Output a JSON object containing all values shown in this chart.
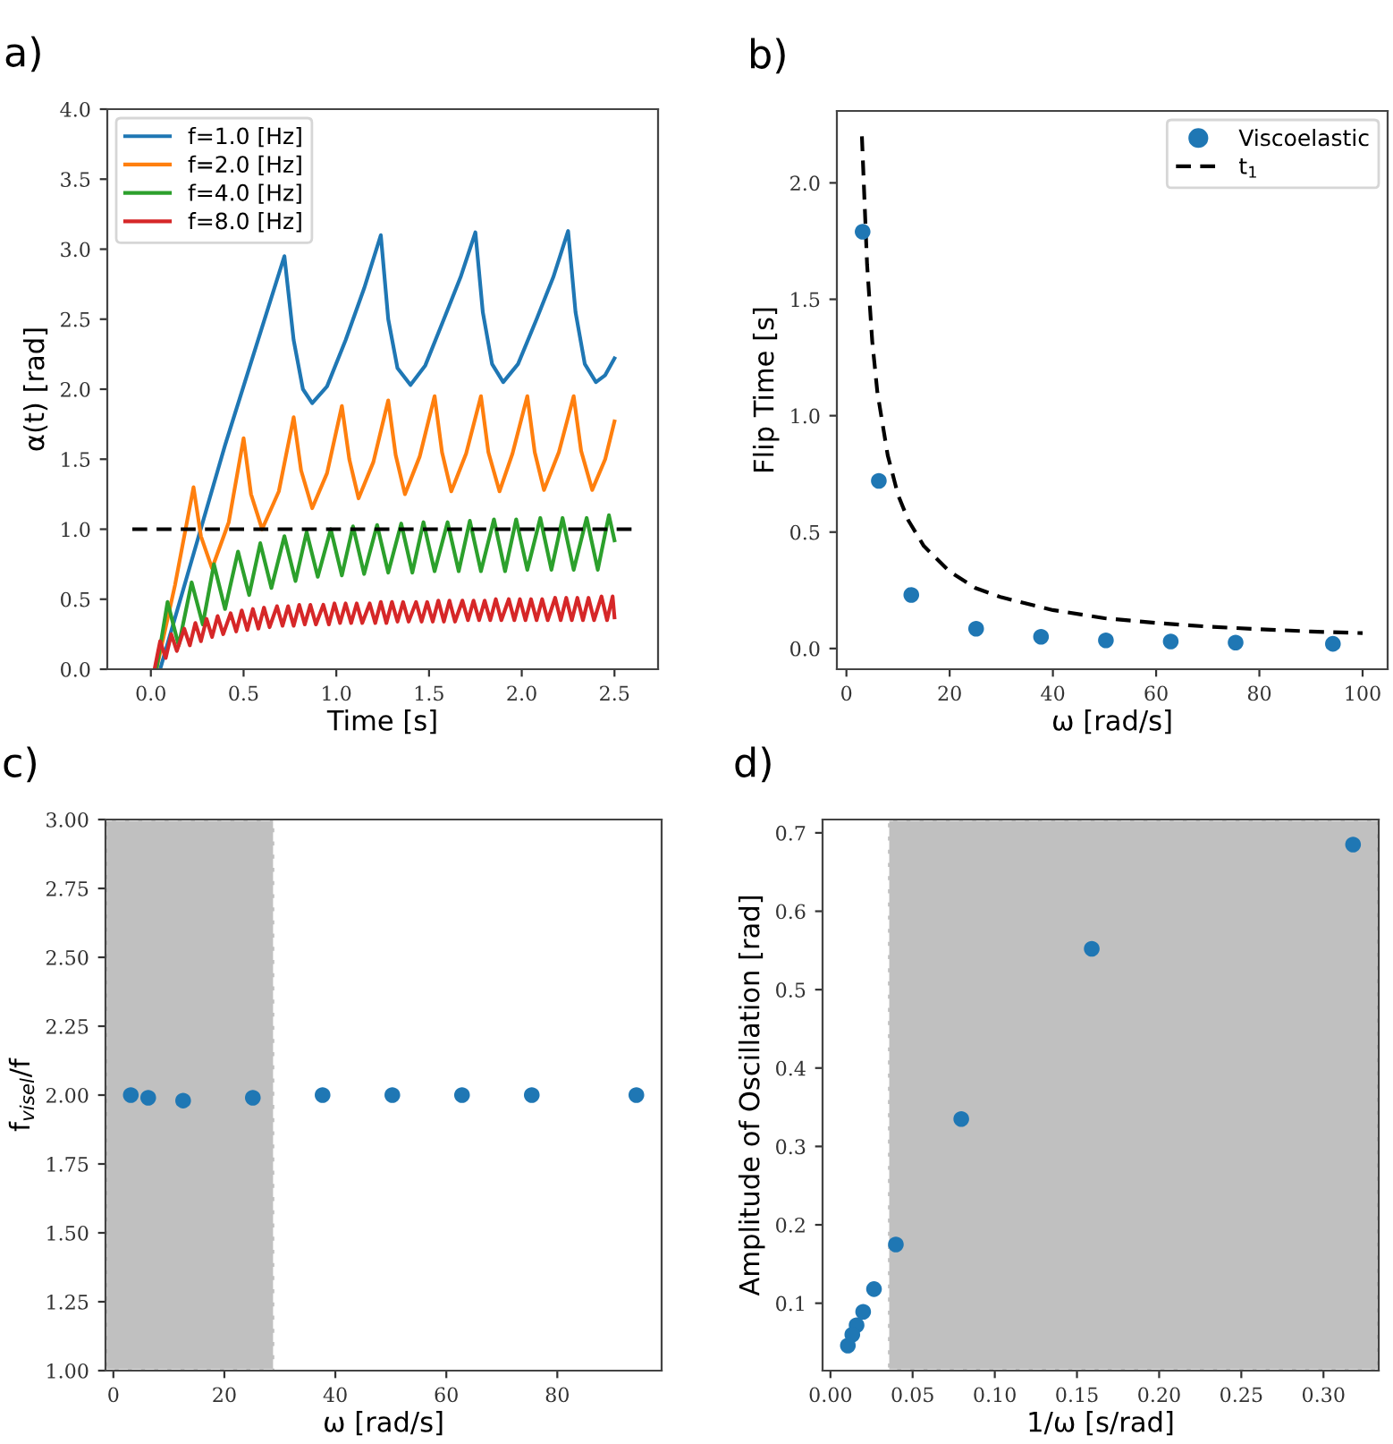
{
  "chart_data": [
    {
      "type": "line",
      "title": "a)",
      "xlabel": "Time [s]",
      "ylabel": "α(t) [rad]",
      "legend": "top left",
      "grid": false,
      "xlim": [
        -0.235,
        2.735
      ],
      "ylim": [
        0,
        4
      ],
      "xticks": [
        {
          "value": 0,
          "label": "0.0"
        },
        {
          "value": 0.5,
          "label": "0.5"
        },
        {
          "value": 1,
          "label": "1.0"
        },
        {
          "value": 1.5,
          "label": "1.5"
        },
        {
          "value": 2,
          "label": "2.0"
        },
        {
          "value": 2.5,
          "label": "2.5"
        }
      ],
      "yticks": [
        {
          "value": 0,
          "label": "0.0"
        },
        {
          "value": 0.5,
          "label": "0.5"
        },
        {
          "value": 1,
          "label": "1.0"
        },
        {
          "value": 1.5,
          "label": "1.5"
        },
        {
          "value": 2,
          "label": "2.0"
        },
        {
          "value": 2.5,
          "label": "2.5"
        },
        {
          "value": 3,
          "label": "3.0"
        },
        {
          "value": 3.5,
          "label": "3.5"
        },
        {
          "value": 4,
          "label": "4.0"
        }
      ],
      "series": [
        {
          "name": "f=1.0 [Hz]",
          "color": "#1f77b4",
          "x": [
            0.05,
            0.4,
            0.72,
            0.77,
            0.82,
            0.87,
            0.95,
            1.05,
            1.15,
            1.24,
            1.28,
            1.33,
            1.4,
            1.48,
            1.58,
            1.67,
            1.75,
            1.79,
            1.84,
            1.9,
            1.98,
            2.08,
            2.17,
            2.25,
            2.29,
            2.34,
            2.4,
            2.45,
            2.5
          ],
          "values": [
            0,
            1.6,
            2.95,
            2.35,
            2.0,
            1.9,
            2.02,
            2.35,
            2.72,
            3.1,
            2.5,
            2.15,
            2.03,
            2.17,
            2.5,
            2.8,
            3.12,
            2.55,
            2.18,
            2.05,
            2.18,
            2.5,
            2.8,
            3.13,
            2.55,
            2.18,
            2.05,
            2.1,
            2.22
          ]
        },
        {
          "name": "f=2.0 [Hz]",
          "color": "#ff7f0e",
          "x": [
            0.03,
            0.13,
            0.23,
            0.27,
            0.33,
            0.42,
            0.5,
            0.54,
            0.6,
            0.69,
            0.77,
            0.81,
            0.87,
            0.95,
            1.03,
            1.07,
            1.12,
            1.2,
            1.28,
            1.32,
            1.37,
            1.45,
            1.53,
            1.57,
            1.62,
            1.7,
            1.78,
            1.82,
            1.88,
            1.95,
            2.03,
            2.07,
            2.12,
            2.2,
            2.28,
            2.32,
            2.38,
            2.45,
            2.5
          ],
          "values": [
            0,
            0.6,
            1.3,
            0.95,
            0.72,
            1.05,
            1.65,
            1.25,
            1.0,
            1.27,
            1.8,
            1.42,
            1.15,
            1.4,
            1.88,
            1.5,
            1.22,
            1.48,
            1.92,
            1.53,
            1.25,
            1.52,
            1.95,
            1.55,
            1.27,
            1.54,
            1.95,
            1.55,
            1.27,
            1.54,
            1.95,
            1.55,
            1.28,
            1.55,
            1.95,
            1.56,
            1.28,
            1.5,
            1.77
          ]
        },
        {
          "name": "f=4.0 [Hz]",
          "color": "#2ca02c",
          "x": [
            0.03,
            0.09,
            0.15,
            0.22,
            0.28,
            0.34,
            0.4,
            0.47,
            0.53,
            0.59,
            0.65,
            0.72,
            0.78,
            0.84,
            0.9,
            0.97,
            1.03,
            1.09,
            1.15,
            1.22,
            1.28,
            1.35,
            1.41,
            1.47,
            1.53,
            1.6,
            1.66,
            1.72,
            1.78,
            1.85,
            1.91,
            1.97,
            2.03,
            2.1,
            2.16,
            2.22,
            2.28,
            2.35,
            2.41,
            2.47,
            2.5
          ],
          "values": [
            0,
            0.48,
            0.17,
            0.62,
            0.32,
            0.75,
            0.43,
            0.84,
            0.53,
            0.9,
            0.58,
            0.95,
            0.63,
            0.98,
            0.66,
            1.0,
            0.67,
            1.02,
            0.68,
            1.03,
            0.69,
            1.04,
            0.69,
            1.05,
            0.7,
            1.05,
            0.7,
            1.06,
            0.7,
            1.07,
            0.7,
            1.07,
            0.71,
            1.08,
            0.71,
            1.08,
            0.71,
            1.08,
            0.71,
            1.1,
            0.92
          ]
        },
        {
          "name": "f=8.0 [Hz]",
          "color": "#d62728",
          "x": [
            0.02,
            0.05,
            0.08,
            0.11,
            0.14,
            0.18,
            0.21,
            0.24,
            0.27,
            0.3,
            0.33,
            0.36,
            0.39,
            0.43,
            0.46,
            0.49,
            0.52,
            0.55,
            0.58,
            0.61,
            0.64,
            0.68,
            0.71,
            0.74,
            0.77,
            0.8,
            0.83,
            0.86,
            0.89,
            0.93,
            0.96,
            0.99,
            1.02,
            1.05,
            1.08,
            1.11,
            1.14,
            1.18,
            1.21,
            1.24,
            1.27,
            1.3,
            1.33,
            1.36,
            1.39,
            1.43,
            1.46,
            1.49,
            1.52,
            1.55,
            1.58,
            1.61,
            1.64,
            1.68,
            1.71,
            1.74,
            1.77,
            1.8,
            1.83,
            1.86,
            1.89,
            1.93,
            1.96,
            1.99,
            2.02,
            2.05,
            2.08,
            2.11,
            2.14,
            2.18,
            2.21,
            2.24,
            2.27,
            2.3,
            2.33,
            2.36,
            2.39,
            2.43,
            2.46,
            2.49,
            2.5
          ],
          "values": [
            0,
            0.2,
            0.08,
            0.25,
            0.13,
            0.29,
            0.17,
            0.33,
            0.2,
            0.36,
            0.23,
            0.38,
            0.25,
            0.4,
            0.27,
            0.42,
            0.28,
            0.43,
            0.29,
            0.44,
            0.3,
            0.45,
            0.31,
            0.45,
            0.31,
            0.46,
            0.32,
            0.46,
            0.32,
            0.46,
            0.32,
            0.47,
            0.33,
            0.47,
            0.33,
            0.47,
            0.33,
            0.47,
            0.33,
            0.48,
            0.33,
            0.48,
            0.34,
            0.48,
            0.34,
            0.48,
            0.34,
            0.48,
            0.34,
            0.49,
            0.34,
            0.49,
            0.34,
            0.49,
            0.35,
            0.49,
            0.35,
            0.49,
            0.35,
            0.5,
            0.35,
            0.5,
            0.35,
            0.5,
            0.35,
            0.5,
            0.35,
            0.5,
            0.35,
            0.51,
            0.35,
            0.51,
            0.35,
            0.51,
            0.35,
            0.51,
            0.35,
            0.52,
            0.35,
            0.52,
            0.37
          ]
        },
        {
          "color": "#000000",
          "line_style": "dashed",
          "x": [
            -0.1,
            2.6
          ],
          "values": [
            1,
            1
          ]
        }
      ]
    },
    {
      "type": "scatter",
      "title": "b)",
      "xlabel": "ω [rad/s]",
      "ylabel": "Flip Time [s]",
      "legend": "top right",
      "grid": false,
      "xlim": [
        -1.85,
        104.85
      ],
      "ylim": [
        -0.089,
        2.309
      ],
      "xticks": [
        0,
        20,
        40,
        60,
        80,
        100
      ],
      "yticks": [
        {
          "value": 0,
          "label": "0.0"
        },
        {
          "value": 0.5,
          "label": "0.5"
        },
        {
          "value": 1,
          "label": "1.0"
        },
        {
          "value": 1.5,
          "label": "1.5"
        },
        {
          "value": 2,
          "label": "2.0"
        }
      ],
      "series": [
        {
          "name": "Viscoelastic",
          "type": "scatter",
          "marker": "circle",
          "color": "#1f77b4",
          "x": [
            3.14,
            6.28,
            12.57,
            25.13,
            37.7,
            50.27,
            62.83,
            75.4,
            94.25
          ],
          "values": [
            1.79,
            0.72,
            0.23,
            0.085,
            0.05,
            0.035,
            0.03,
            0.025,
            0.02
          ]
        },
        {
          "name": "t$_{1}$",
          "type": "line",
          "line_style": "dashed",
          "color": "#000000",
          "x": [
            3,
            4,
            5,
            6,
            8,
            10,
            12,
            15,
            20,
            25,
            30,
            40,
            50,
            60,
            70,
            80,
            90,
            100
          ],
          "values": [
            2.2,
            1.65,
            1.32,
            1.1,
            0.83,
            0.66,
            0.55,
            0.44,
            0.33,
            0.26,
            0.22,
            0.165,
            0.13,
            0.11,
            0.094,
            0.083,
            0.073,
            0.066
          ]
        }
      ]
    },
    {
      "type": "scatter",
      "title": "c)",
      "xlabel": "ω [rad/s]",
      "ylabel": "f$_{visel}$/f",
      "grid": false,
      "marker": "circle",
      "xlim": [
        -1.42,
        98.8
      ],
      "ylim": [
        1,
        3
      ],
      "xticks": [
        0,
        20,
        40,
        60,
        80
      ],
      "yticks": [
        {
          "value": 1,
          "label": "1.00"
        },
        {
          "value": 1.25,
          "label": "1.25"
        },
        {
          "value": 1.5,
          "label": "1.50"
        },
        {
          "value": 1.75,
          "label": "1.75"
        },
        {
          "value": 2,
          "label": "2.00"
        },
        {
          "value": 2.25,
          "label": "2.25"
        },
        {
          "value": 2.5,
          "label": "2.50"
        },
        {
          "value": 2.75,
          "label": "2.75"
        },
        {
          "value": 3,
          "label": "3.00"
        }
      ],
      "bands": [
        {
          "axis": "x",
          "from": -1.42,
          "to": 29,
          "color": "#c0c0c0"
        }
      ],
      "series": [
        {
          "color": "#1f77b4",
          "x": [
            3.14,
            6.28,
            12.57,
            25.13,
            37.7,
            50.27,
            62.83,
            75.4,
            94.25
          ],
          "values": [
            2.0,
            1.99,
            1.98,
            1.99,
            2.0,
            2.0,
            2.0,
            2.0,
            2.0
          ]
        }
      ]
    },
    {
      "type": "scatter",
      "title": "d)",
      "xlabel": "1/ω [s/rad]",
      "ylabel": "Amplitude of Oscillation [rad]",
      "grid": false,
      "marker": "circle",
      "xlim": [
        -0.0048,
        0.3336
      ],
      "ylim": [
        0.014,
        0.717
      ],
      "xticks": [
        {
          "value": 0,
          "label": "0.00"
        },
        {
          "value": 0.05,
          "label": "0.05"
        },
        {
          "value": 0.1,
          "label": "0.10"
        },
        {
          "value": 0.15,
          "label": "0.15"
        },
        {
          "value": 0.2,
          "label": "0.20"
        },
        {
          "value": 0.25,
          "label": "0.25"
        },
        {
          "value": 0.3,
          "label": "0.30"
        }
      ],
      "yticks": [
        0.1,
        0.2,
        0.3,
        0.4,
        0.5,
        0.6,
        0.7
      ],
      "bands": [
        {
          "axis": "x",
          "from": 0.035,
          "to": 0.3336,
          "color": "#c0c0c0"
        }
      ],
      "series": [
        {
          "color": "#1f77b4",
          "x": [
            0.318,
            0.159,
            0.0796,
            0.0398,
            0.0265,
            0.0199,
            0.0159,
            0.0133,
            0.0106
          ],
          "values": [
            0.685,
            0.552,
            0.335,
            0.175,
            0.118,
            0.089,
            0.072,
            0.06,
            0.046
          ]
        }
      ]
    }
  ]
}
